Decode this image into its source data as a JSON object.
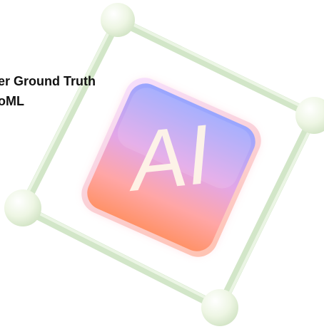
{
  "headline": {
    "line1": "er Ground Truth",
    "line2": "oML"
  },
  "badge": {
    "text": "AI",
    "icon": "ai-chip-icon"
  },
  "colors": {
    "frame": "#d8ead0",
    "node": "#eef6e6",
    "tile_top": "#9aa8ff",
    "tile_mid": "#f4a6c8",
    "tile_bottom": "#ff9a76",
    "text": "#111111"
  }
}
